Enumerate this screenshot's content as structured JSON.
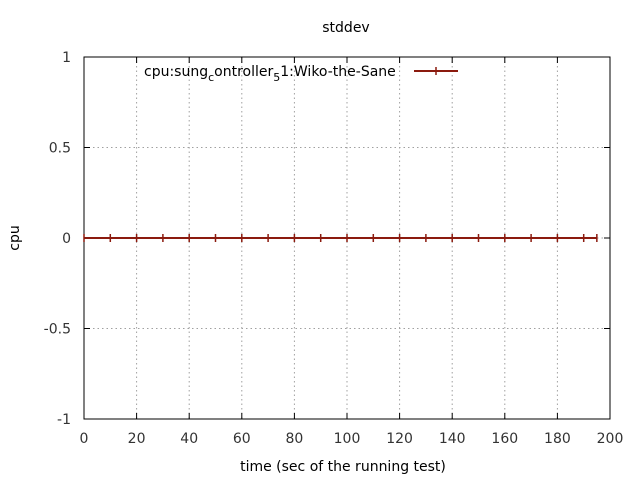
{
  "chart_data": {
    "type": "line",
    "title": "stddev",
    "xlabel": "time (sec of the running test)",
    "ylabel": "cpu",
    "xlim": [
      0,
      200
    ],
    "ylim": [
      -1,
      1
    ],
    "xticks": [
      "0",
      "20",
      "40",
      "60",
      "80",
      "100",
      "120",
      "140",
      "160",
      "180",
      "200"
    ],
    "yticks": [
      "1",
      "0.5",
      "0",
      "-0.5",
      "-1"
    ],
    "grid": true,
    "legend_position": "top",
    "series": [
      {
        "name": "cpu:sung_controller_5_1:Wiko-the-Sane",
        "legend_parts": {
          "base": "cpu:sung",
          "sub1": "c",
          "mid": "ontroller",
          "sub2": "5",
          "tail": "1:Wiko-the-Sane"
        },
        "color": "#8b1a0e",
        "x": [
          0,
          10,
          20,
          30,
          40,
          50,
          60,
          70,
          80,
          90,
          100,
          110,
          120,
          130,
          140,
          150,
          160,
          170,
          180,
          190,
          195
        ],
        "y": [
          0,
          0,
          0,
          0,
          0,
          0,
          0,
          0,
          0,
          0,
          0,
          0,
          0,
          0,
          0,
          0,
          0,
          0,
          0,
          0,
          0
        ]
      }
    ]
  }
}
